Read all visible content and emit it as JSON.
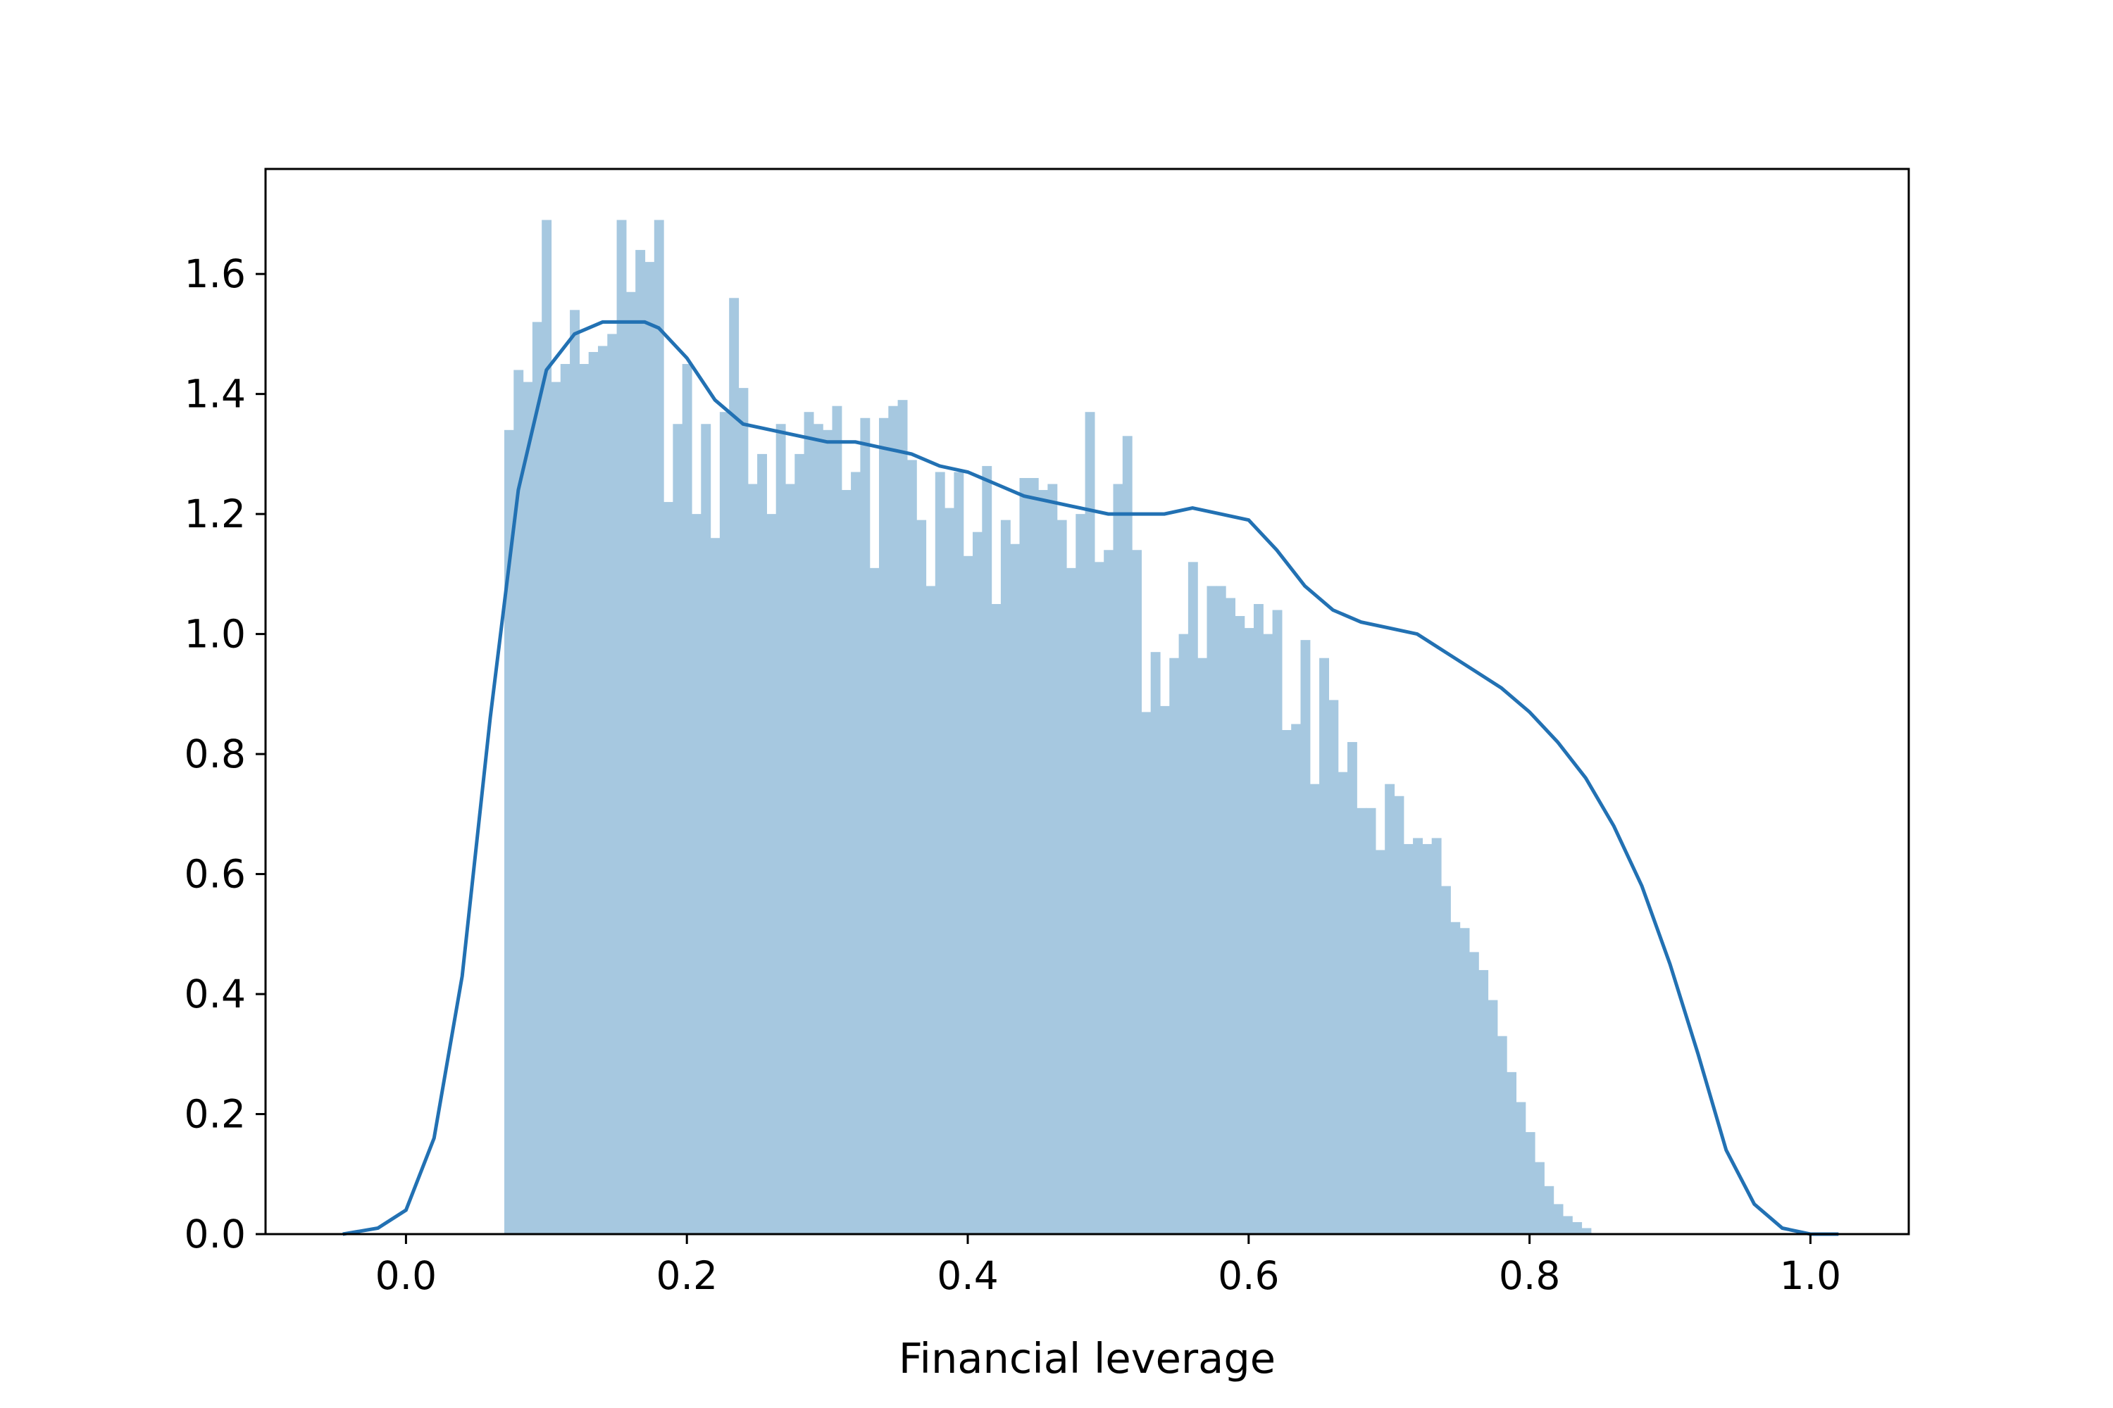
{
  "chart_data": {
    "type": "histogram",
    "title": "",
    "xlabel": "Financial leverage",
    "ylabel": "",
    "xlim": [
      -0.1,
      1.07
    ],
    "ylim": [
      0.0,
      1.775
    ],
    "xticks": [
      "0.0",
      "0.2",
      "0.4",
      "0.6",
      "0.8",
      "1.0"
    ],
    "yticks": [
      "0.0",
      "0.2",
      "0.4",
      "0.6",
      "0.8",
      "1.0",
      "1.2",
      "1.4",
      "1.6"
    ],
    "grid": false,
    "colors": {
      "bars": "#a6c8e0",
      "kde": "#2271b3",
      "axes": "#000000"
    },
    "histogram": {
      "bin_start": 0.07,
      "bin_width": 0.00667,
      "densities": [
        1.34,
        1.44,
        1.42,
        1.52,
        1.69,
        1.42,
        1.45,
        1.54,
        1.45,
        1.47,
        1.48,
        1.5,
        1.69,
        1.57,
        1.64,
        1.62,
        1.69,
        1.22,
        1.35,
        1.45,
        1.2,
        1.35,
        1.16,
        1.37,
        1.56,
        1.41,
        1.25,
        1.3,
        1.2,
        1.35,
        1.25,
        1.3,
        1.37,
        1.35,
        1.34,
        1.38,
        1.24,
        1.27,
        1.36,
        1.11,
        1.36,
        1.38,
        1.39,
        1.29,
        1.19,
        1.08,
        1.27,
        1.21,
        1.27,
        1.13,
        1.17,
        1.28,
        1.05,
        1.19,
        1.15,
        1.26,
        1.26,
        1.24,
        1.25,
        1.19,
        1.11,
        1.2,
        1.37,
        1.12,
        1.14,
        1.25,
        1.33,
        1.14,
        0.87,
        0.97,
        0.88,
        0.96,
        1.0,
        1.12,
        0.96,
        1.08,
        1.08,
        1.06,
        1.03,
        1.01,
        1.05,
        1.0,
        1.04,
        0.84,
        0.85,
        0.99,
        0.75,
        0.96,
        0.89,
        0.77,
        0.82,
        0.71,
        0.71,
        0.64,
        0.75,
        0.73,
        0.65,
        0.66,
        0.65,
        0.66,
        0.58,
        0.52,
        0.51,
        0.47,
        0.44,
        0.39,
        0.33,
        0.27,
        0.22,
        0.17,
        0.12,
        0.08,
        0.05,
        0.03,
        0.02,
        0.01,
        0.0,
        0.0,
        0.0,
        0.0,
        0.0,
        0.0,
        0.0,
        0.0,
        0.0,
        0.0
      ]
    },
    "kde": {
      "x": [
        -0.045,
        -0.02,
        0.0,
        0.02,
        0.04,
        0.06,
        0.08,
        0.1,
        0.12,
        0.14,
        0.16,
        0.17,
        0.18,
        0.2,
        0.22,
        0.24,
        0.26,
        0.28,
        0.3,
        0.32,
        0.34,
        0.36,
        0.38,
        0.4,
        0.42,
        0.44,
        0.46,
        0.48,
        0.5,
        0.52,
        0.54,
        0.56,
        0.58,
        0.6,
        0.62,
        0.64,
        0.66,
        0.68,
        0.7,
        0.72,
        0.74,
        0.76,
        0.78,
        0.8,
        0.82,
        0.84,
        0.86,
        0.88,
        0.9,
        0.92,
        0.94,
        0.96,
        0.98,
        1.0,
        1.02
      ],
      "y": [
        0.0,
        0.01,
        0.04,
        0.16,
        0.43,
        0.86,
        1.24,
        1.44,
        1.5,
        1.52,
        1.52,
        1.52,
        1.51,
        1.46,
        1.39,
        1.35,
        1.34,
        1.33,
        1.32,
        1.32,
        1.31,
        1.3,
        1.28,
        1.27,
        1.25,
        1.23,
        1.22,
        1.21,
        1.2,
        1.2,
        1.2,
        1.21,
        1.2,
        1.19,
        1.14,
        1.08,
        1.04,
        1.02,
        1.01,
        1.0,
        0.97,
        0.94,
        0.91,
        0.87,
        0.82,
        0.76,
        0.68,
        0.58,
        0.45,
        0.3,
        0.14,
        0.05,
        0.01,
        0.0,
        0.0
      ]
    }
  }
}
